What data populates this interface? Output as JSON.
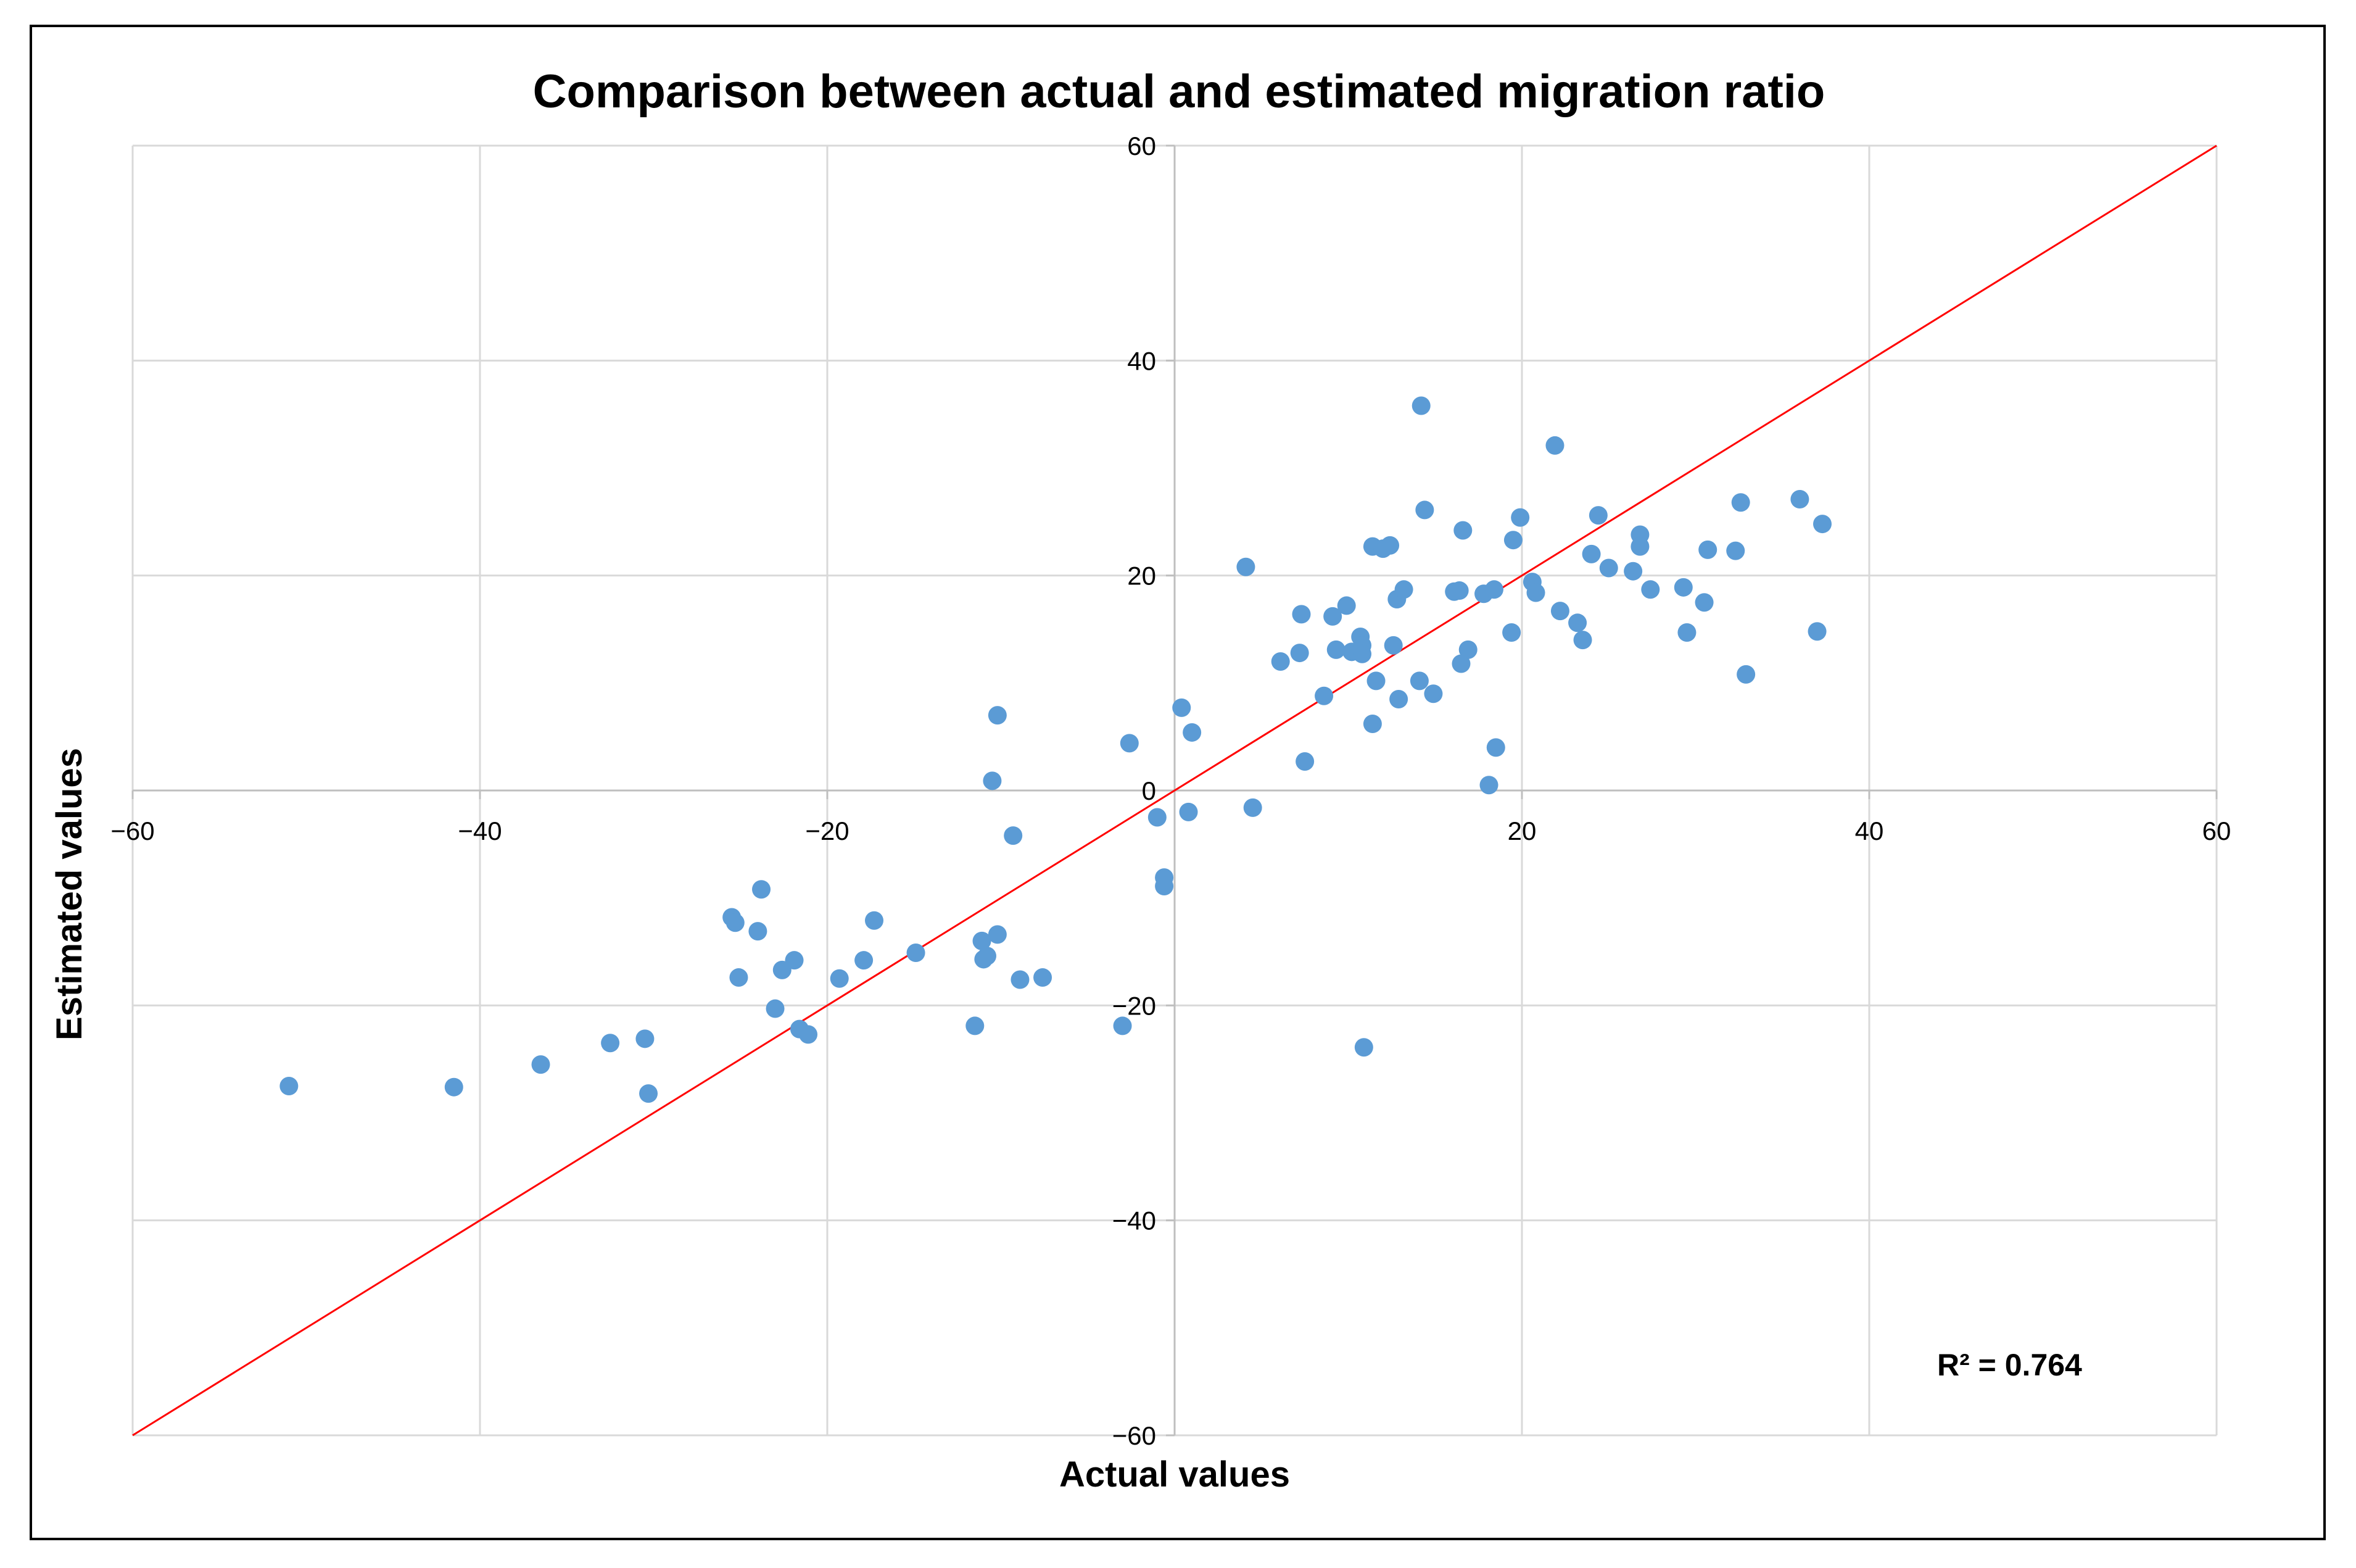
{
  "chart_data": {
    "type": "scatter",
    "title": "Comparison between actual and estimated migration ratio",
    "xlabel": "Actual values",
    "ylabel": "Estimated values",
    "xlim": [
      -60,
      60
    ],
    "ylim": [
      -60,
      60
    ],
    "x_ticks": [
      -60,
      -40,
      -20,
      0,
      20,
      40,
      60
    ],
    "y_ticks": [
      -60,
      -40,
      -20,
      0,
      20,
      40,
      60
    ],
    "x_tick_labels": [
      "−60",
      "−40",
      "−20",
      "0",
      "20",
      "40",
      "60"
    ],
    "y_tick_labels": [
      "−60",
      "−40",
      "−20",
      "0",
      "20",
      "40",
      "60"
    ],
    "grid": true,
    "point_color": "#5b9bd5",
    "reference_line": {
      "type": "y=x",
      "color": "#ff0000"
    },
    "annotation": "R² = 0.764",
    "points": [
      [
        -51,
        -27.5
      ],
      [
        -41.5,
        -27.6
      ],
      [
        -36.5,
        -25.5
      ],
      [
        -32.5,
        -23.5
      ],
      [
        -30.5,
        -23.1
      ],
      [
        -30.3,
        -28.2
      ],
      [
        -25.5,
        -11.8
      ],
      [
        -25.3,
        -12.3
      ],
      [
        -25.1,
        -17.4
      ],
      [
        -24.0,
        -13.1
      ],
      [
        -23.8,
        -9.2
      ],
      [
        -23.0,
        -20.3
      ],
      [
        -22.6,
        -16.7
      ],
      [
        -21.9,
        -15.8
      ],
      [
        -21.6,
        -22.2
      ],
      [
        -21.1,
        -22.7
      ],
      [
        -19.3,
        -17.5
      ],
      [
        -17.9,
        -15.8
      ],
      [
        -17.3,
        -12.1
      ],
      [
        -14.9,
        -15.1
      ],
      [
        -11.5,
        -21.9
      ],
      [
        -11.1,
        -14.0
      ],
      [
        -11.0,
        -15.7
      ],
      [
        -10.8,
        -15.4
      ],
      [
        -10.5,
        0.9
      ],
      [
        -10.2,
        -13.4
      ],
      [
        -10.2,
        7.0
      ],
      [
        -9.3,
        -4.2
      ],
      [
        -8.9,
        -17.6
      ],
      [
        -7.6,
        -17.4
      ],
      [
        -3.0,
        -21.9
      ],
      [
        -2.6,
        4.4
      ],
      [
        -1.0,
        -2.5
      ],
      [
        -0.6,
        -8.1
      ],
      [
        -0.6,
        -8.9
      ],
      [
        0.4,
        7.7
      ],
      [
        0.8,
        -2.0
      ],
      [
        1.0,
        5.4
      ],
      [
        4.1,
        20.8
      ],
      [
        4.5,
        -1.6
      ],
      [
        6.1,
        12.0
      ],
      [
        7.2,
        12.8
      ],
      [
        7.3,
        16.4
      ],
      [
        7.5,
        2.7
      ],
      [
        8.6,
        8.8
      ],
      [
        9.1,
        16.2
      ],
      [
        9.3,
        13.1
      ],
      [
        9.9,
        17.2
      ],
      [
        10.2,
        12.9
      ],
      [
        10.7,
        14.3
      ],
      [
        10.8,
        13.5
      ],
      [
        10.8,
        12.7
      ],
      [
        10.9,
        -23.9
      ],
      [
        11.4,
        22.7
      ],
      [
        11.4,
        6.2
      ],
      [
        11.6,
        10.2
      ],
      [
        12.0,
        22.5
      ],
      [
        12.4,
        22.8
      ],
      [
        12.6,
        13.5
      ],
      [
        12.8,
        17.8
      ],
      [
        12.9,
        8.5
      ],
      [
        13.2,
        18.7
      ],
      [
        14.1,
        10.2
      ],
      [
        14.2,
        35.8
      ],
      [
        14.4,
        26.1
      ],
      [
        14.9,
        9.0
      ],
      [
        16.1,
        18.5
      ],
      [
        16.4,
        18.6
      ],
      [
        16.5,
        11.8
      ],
      [
        16.6,
        24.2
      ],
      [
        16.9,
        13.1
      ],
      [
        17.8,
        18.3
      ],
      [
        18.1,
        0.5
      ],
      [
        18.4,
        18.7
      ],
      [
        18.5,
        4.0
      ],
      [
        19.4,
        14.7
      ],
      [
        19.5,
        23.3
      ],
      [
        19.9,
        25.4
      ],
      [
        20.6,
        19.4
      ],
      [
        20.8,
        18.4
      ],
      [
        21.9,
        32.1
      ],
      [
        22.2,
        16.7
      ],
      [
        23.2,
        15.6
      ],
      [
        23.5,
        14.0
      ],
      [
        24.0,
        22.0
      ],
      [
        24.4,
        25.6
      ],
      [
        25.0,
        20.7
      ],
      [
        26.4,
        20.4
      ],
      [
        26.8,
        23.8
      ],
      [
        26.8,
        22.7
      ],
      [
        27.4,
        18.7
      ],
      [
        29.3,
        18.9
      ],
      [
        29.5,
        14.7
      ],
      [
        30.5,
        17.5
      ],
      [
        30.7,
        22.4
      ],
      [
        32.3,
        22.3
      ],
      [
        32.6,
        26.8
      ],
      [
        32.9,
        10.8
      ],
      [
        36.0,
        27.1
      ],
      [
        37.0,
        14.8
      ],
      [
        37.3,
        24.8
      ]
    ]
  }
}
